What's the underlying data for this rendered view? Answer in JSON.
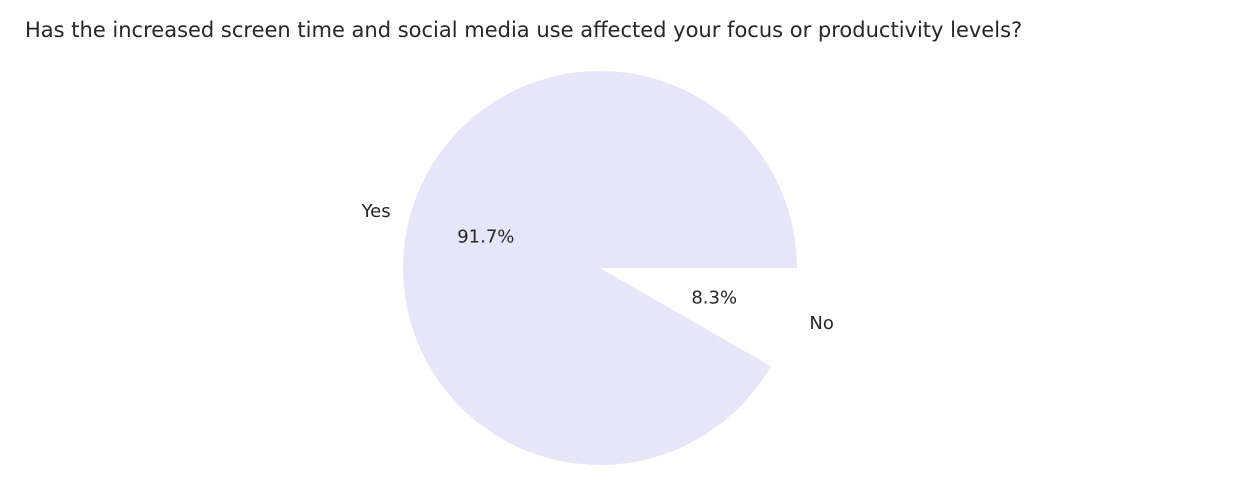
{
  "chart_data": {
    "type": "pie",
    "title": "Has the increased screen time and social media use affected your focus or productivity levels?",
    "slices": [
      {
        "label": "Yes",
        "value": 91.7,
        "pct_label": "91.7%",
        "color": "#e6e6f8"
      },
      {
        "label": "No",
        "value": 8.3,
        "pct_label": "8.3%",
        "color": "#ffffff"
      }
    ]
  }
}
